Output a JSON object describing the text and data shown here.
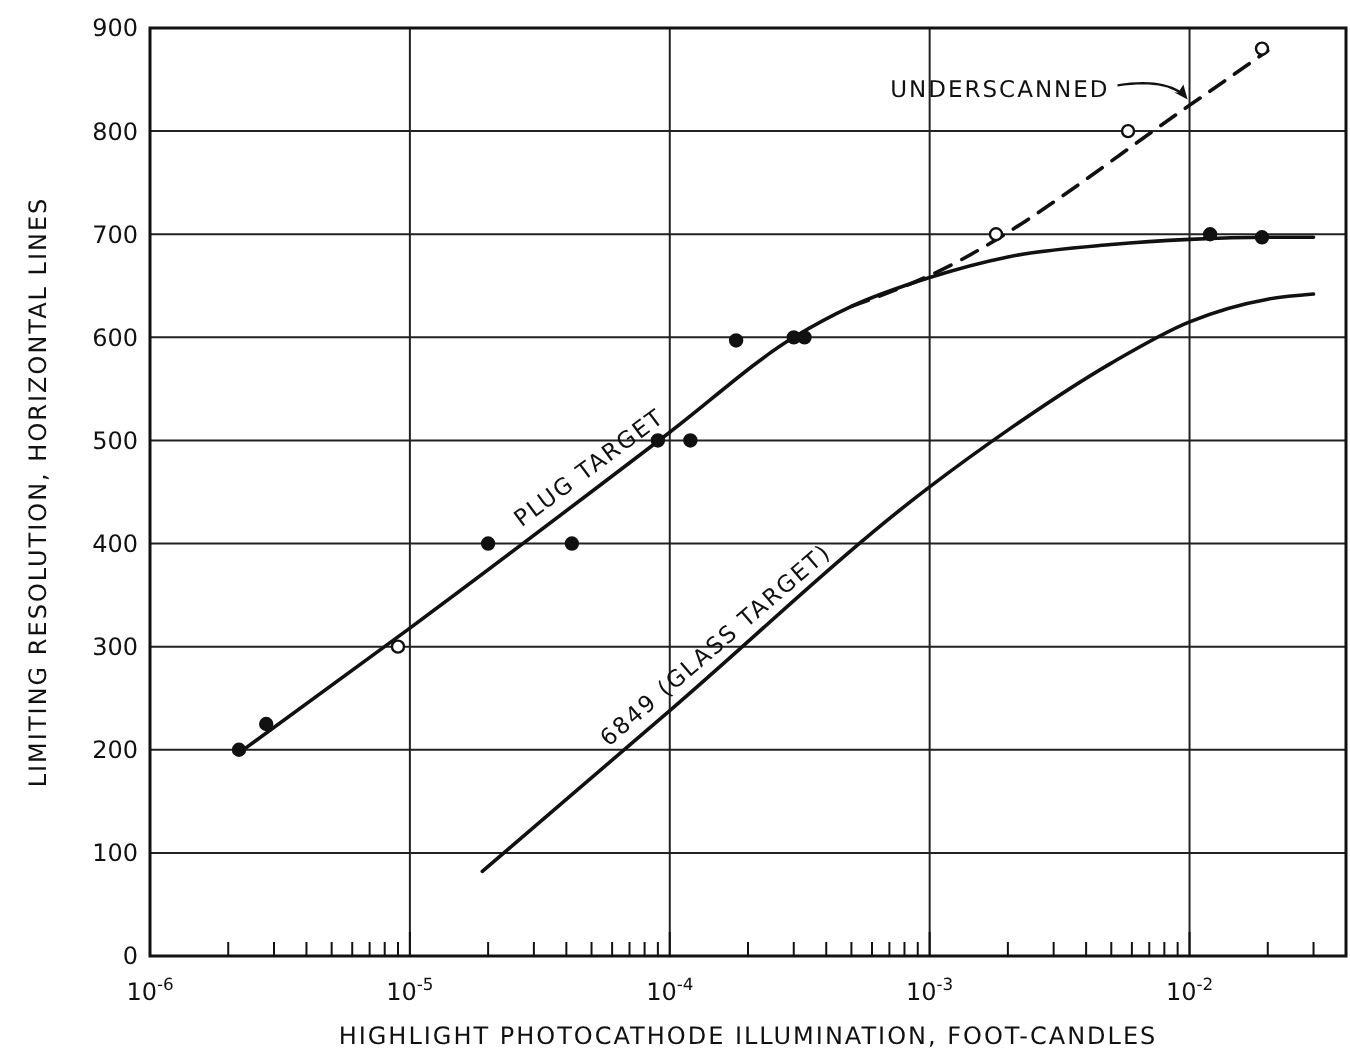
{
  "chart_data": {
    "type": "line",
    "xlabel": "HIGHLIGHT PHOTOCATHODE ILLUMINATION, FOOT-CANDLES",
    "ylabel": "LIMITING RESOLUTION, HORIZONTAL LINES",
    "log": "x",
    "grid": true,
    "xlim": [
      1e-06,
      0.04
    ],
    "ylim": [
      0,
      900
    ],
    "xticks": [
      {
        "value": 1e-06,
        "label": "10$^{-6}$"
      },
      {
        "value": 2e-06,
        "label": null
      },
      {
        "value": 3e-06,
        "label": null
      },
      {
        "value": 4e-06,
        "label": null
      },
      {
        "value": 5e-06,
        "label": null
      },
      {
        "value": 6e-06,
        "label": null
      },
      {
        "value": 7e-06,
        "label": null
      },
      {
        "value": 8e-06,
        "label": null
      },
      {
        "value": 9e-06,
        "label": null
      },
      {
        "value": 1e-05,
        "label": "10$^{-5}$"
      },
      {
        "value": 2e-05,
        "label": null
      },
      {
        "value": 3e-05,
        "label": null
      },
      {
        "value": 4e-05,
        "label": null
      },
      {
        "value": 5e-05,
        "label": null
      },
      {
        "value": 6e-05,
        "label": null
      },
      {
        "value": 7e-05,
        "label": null
      },
      {
        "value": 8e-05,
        "label": null
      },
      {
        "value": 9e-05,
        "label": null
      },
      {
        "value": 0.0001,
        "label": "10$^{-4}$"
      },
      {
        "value": 0.0002,
        "label": null
      },
      {
        "value": 0.0003,
        "label": null
      },
      {
        "value": 0.0004,
        "label": null
      },
      {
        "value": 0.0005,
        "label": null
      },
      {
        "value": 0.0006,
        "label": null
      },
      {
        "value": 0.0007,
        "label": null
      },
      {
        "value": 0.0008,
        "label": null
      },
      {
        "value": 0.0009,
        "label": null
      },
      {
        "value": 0.001,
        "label": "10$^{-3}$"
      },
      {
        "value": 0.002,
        "label": null
      },
      {
        "value": 0.003,
        "label": null
      },
      {
        "value": 0.004,
        "label": null
      },
      {
        "value": 0.005,
        "label": null
      },
      {
        "value": 0.006,
        "label": null
      },
      {
        "value": 0.007,
        "label": null
      },
      {
        "value": 0.008,
        "label": null
      },
      {
        "value": 0.009,
        "label": null
      },
      {
        "value": 0.01,
        "label": "10$^{-2}$"
      },
      {
        "value": 0.02,
        "label": null
      },
      {
        "value": 0.03,
        "label": null
      }
    ],
    "yticks": [
      0,
      100,
      200,
      300,
      400,
      500,
      600,
      700,
      800,
      900
    ],
    "series": [
      {
        "name": "PLUG TARGET",
        "color": "#111111",
        "line_style": "solid",
        "x": [
          2.2e-06,
          1e-05,
          0.0001,
          0.0003,
          0.0005,
          0.001,
          0.002,
          0.005,
          0.01,
          0.02,
          0.03
        ],
        "values": [
          197,
          318,
          508,
          600,
          630,
          658,
          678,
          690,
          695,
          697,
          697
        ]
      },
      {
        "name": "UNDERSCANNED",
        "color": "#111111",
        "line_style": "dashed",
        "x": [
          0.0005,
          0.001,
          0.01,
          0.02
        ],
        "values": [
          630,
          660,
          825,
          878
        ]
      },
      {
        "name": "6849 (GLASS TARGET)",
        "color": "#111111",
        "line_style": "solid",
        "x": [
          1.9e-05,
          0.0001,
          0.001,
          0.002,
          0.005,
          0.01,
          0.02,
          0.03
        ],
        "values": [
          82,
          238,
          455,
          510,
          575,
          615,
          637,
          642
        ]
      },
      {
        "type": "scatter",
        "color": "#111111",
        "marker": "circle",
        "x": [
          2.2e-06,
          2.8e-06,
          2e-05,
          4.2e-05,
          9e-05,
          0.00012,
          0.00018,
          0.0003,
          0.00033,
          0.012,
          0.019
        ],
        "values": [
          200,
          225,
          400,
          400,
          500,
          500,
          597,
          600,
          600,
          700,
          697
        ]
      },
      {
        "type": "scatter",
        "color": "#111111",
        "marker": "circle",
        "x": [
          9e-06,
          0.0018,
          0.0058,
          0.019
        ],
        "values": [
          300,
          700,
          800,
          880
        ]
      }
    ]
  }
}
